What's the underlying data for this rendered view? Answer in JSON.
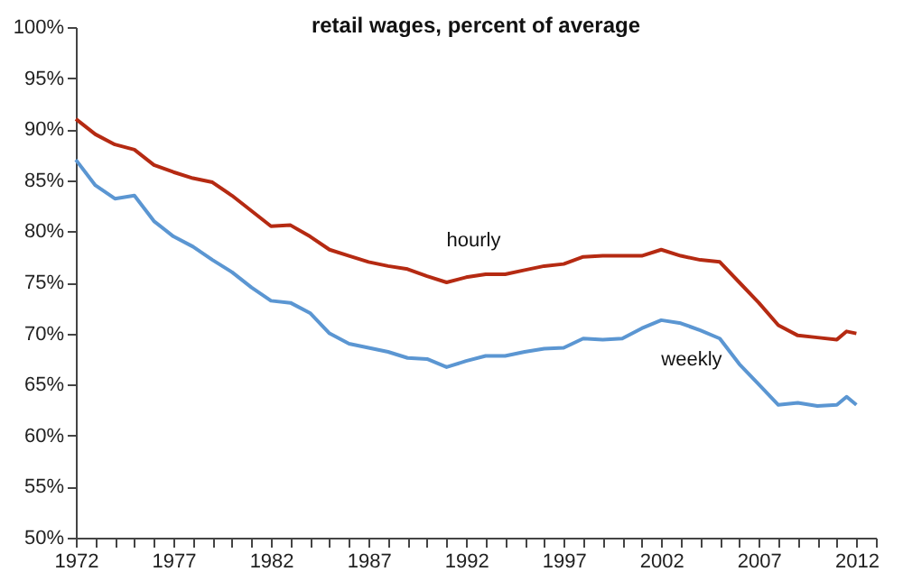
{
  "chart_data": {
    "type": "line",
    "title": "retail wages, percent of average",
    "x": [
      1972,
      1973,
      1974,
      1975,
      1976,
      1977,
      1978,
      1979,
      1980,
      1981,
      1982,
      1983,
      1984,
      1985,
      1986,
      1987,
      1988,
      1989,
      1990,
      1991,
      1992,
      1993,
      1994,
      1995,
      1996,
      1997,
      1998,
      1999,
      2000,
      2001,
      2002,
      2003,
      2004,
      2005,
      2006,
      2007,
      2008,
      2009,
      2010,
      2011,
      2011.5,
      2012
    ],
    "series": [
      {
        "name": "hourly",
        "color": "#b52a12",
        "values": [
          91,
          89.5,
          88.5,
          88,
          86.5,
          85.8,
          85.2,
          84.8,
          83.5,
          82,
          80.5,
          80.6,
          79.5,
          78.2,
          77.6,
          77,
          76.6,
          76.3,
          75.6,
          75,
          75.5,
          75.8,
          75.8,
          76.2,
          76.6,
          76.8,
          77.5,
          77.6,
          77.6,
          77.6,
          78.2,
          77.6,
          77.2,
          77,
          75,
          73,
          70.8,
          69.8,
          69.6,
          69.4,
          70.2,
          70
        ]
      },
      {
        "name": "weekly",
        "color": "#5b96d2",
        "values": [
          87,
          84.5,
          83.2,
          83.5,
          81,
          79.5,
          78.5,
          77.2,
          76,
          74.5,
          73.2,
          73,
          72,
          70,
          69,
          68.6,
          68.2,
          67.6,
          67.5,
          66.7,
          67.3,
          67.8,
          67.8,
          68.2,
          68.5,
          68.6,
          69.5,
          69.4,
          69.5,
          70.5,
          71.3,
          71,
          70.3,
          69.5,
          67,
          65,
          63,
          63.2,
          62.9,
          63,
          63.8,
          63
        ]
      }
    ],
    "xlim": [
      1972,
      2013
    ],
    "xticks": [
      1972,
      {
        "value": 1973,
        "label": null
      },
      {
        "value": 1974,
        "label": null
      },
      {
        "value": 1975,
        "label": null
      },
      {
        "value": 1976,
        "label": null
      },
      1977,
      {
        "value": 1978,
        "label": null
      },
      {
        "value": 1979,
        "label": null
      },
      {
        "value": 1980,
        "label": null
      },
      {
        "value": 1981,
        "label": null
      },
      1982,
      {
        "value": 1983,
        "label": null
      },
      {
        "value": 1984,
        "label": null
      },
      {
        "value": 1985,
        "label": null
      },
      {
        "value": 1986,
        "label": null
      },
      1987,
      {
        "value": 1988,
        "label": null
      },
      {
        "value": 1989,
        "label": null
      },
      {
        "value": 1990,
        "label": null
      },
      {
        "value": 1991,
        "label": null
      },
      1992,
      {
        "value": 1993,
        "label": null
      },
      {
        "value": 1994,
        "label": null
      },
      {
        "value": 1995,
        "label": null
      },
      {
        "value": 1996,
        "label": null
      },
      1997,
      {
        "value": 1998,
        "label": null
      },
      {
        "value": 1999,
        "label": null
      },
      {
        "value": 2000,
        "label": null
      },
      {
        "value": 2001,
        "label": null
      },
      2002,
      {
        "value": 2003,
        "label": null
      },
      {
        "value": 2004,
        "label": null
      },
      {
        "value": 2005,
        "label": null
      },
      {
        "value": 2006,
        "label": null
      },
      2007,
      {
        "value": 2008,
        "label": null
      },
      {
        "value": 2009,
        "label": null
      },
      {
        "value": 2010,
        "label": null
      },
      {
        "value": 2011,
        "label": null
      },
      2012,
      {
        "value": 2013,
        "label": null
      }
    ],
    "ylim": [
      50,
      100
    ],
    "yticks": [
      {
        "value": 50,
        "label": "50%"
      },
      {
        "value": 55,
        "label": "55%"
      },
      {
        "value": 60,
        "label": "60%"
      },
      {
        "value": 65,
        "label": "65%"
      },
      {
        "value": 70,
        "label": "70%"
      },
      {
        "value": 75,
        "label": "75%"
      },
      {
        "value": 80,
        "label": "80%"
      },
      {
        "value": 85,
        "label": "85%"
      },
      {
        "value": 90,
        "label": "90%"
      },
      {
        "value": 95,
        "label": "95%"
      },
      {
        "value": 100,
        "label": "100%"
      }
    ],
    "grid": false,
    "legend": false,
    "marker": "none",
    "line_style": "solid"
  }
}
